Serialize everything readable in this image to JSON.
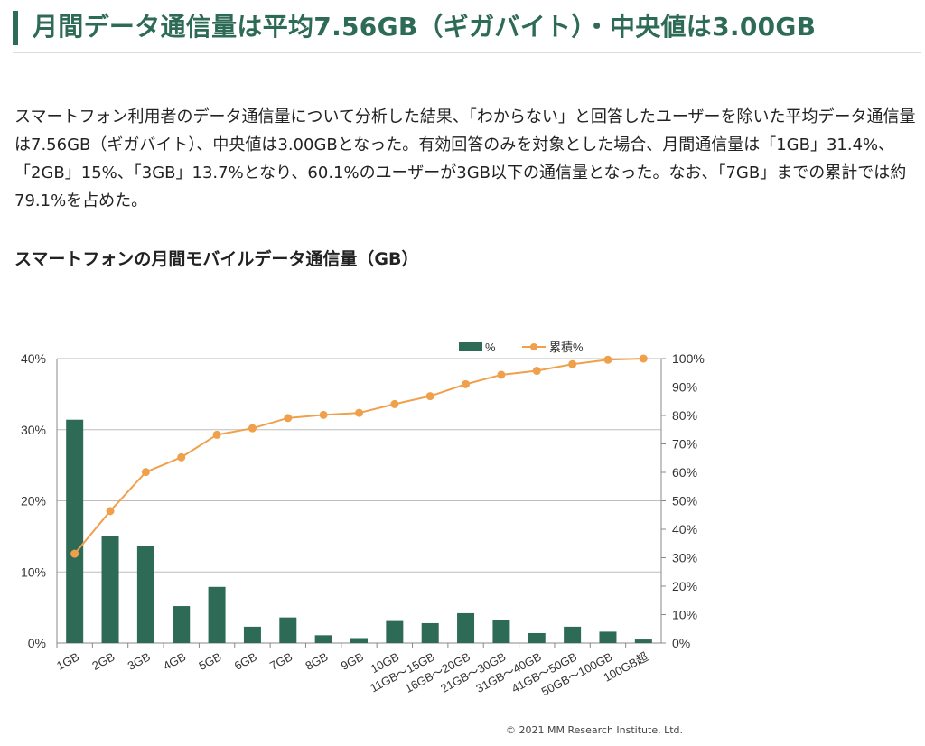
{
  "heading": {
    "title": "月間データ通信量は平均7.56GB（ギガバイト）・中央値は3.00GB"
  },
  "paragraph": "スマートフォン利用者のデータ通信量について分析した結果、「わからない」と回答したユーザーを除いた平均データ通信量は7.56GB（ギガバイト）、中央値は3.00GBとなった。有効回答のみを対象とした場合、月間通信量は「1GB」31.4%、「2GB」15%、「3GB」13.7%となり、60.1%のユーザーが3GB以下の通信量となった。なお、「7GB」までの累計では約79.1%を占めた。",
  "chart_heading": "スマートフォンの月間モバイルデータ通信量（GB）",
  "copyright": "© 2021 MM Research Institute, Ltd.",
  "colors": {
    "bar": "#2e6b57",
    "line": "#f0a04b",
    "heading": "#2e6b57"
  },
  "chart_data": {
    "type": "bar",
    "categories": [
      "1GB",
      "2GB",
      "3GB",
      "4GB",
      "5GB",
      "6GB",
      "7GB",
      "8GB",
      "9GB",
      "10GB",
      "11GB〜15GB",
      "16GB〜20GB",
      "21GB〜30GB",
      "31GB〜40GB",
      "41GB〜50GB",
      "50GB〜100GB",
      "100GB超"
    ],
    "series": [
      {
        "name": "%",
        "type": "bar",
        "axis": "left",
        "values": [
          31.4,
          15.0,
          13.7,
          5.2,
          7.9,
          2.3,
          3.6,
          1.1,
          0.7,
          3.1,
          2.8,
          4.2,
          3.3,
          1.4,
          2.3,
          1.6,
          0.5
        ]
      },
      {
        "name": "累積%",
        "type": "line",
        "axis": "right",
        "values": [
          31.4,
          46.4,
          60.1,
          65.3,
          73.2,
          75.5,
          79.1,
          80.2,
          80.9,
          84.0,
          86.8,
          91.0,
          94.3,
          95.7,
          98.0,
          99.6,
          100.0
        ]
      }
    ],
    "y_left": {
      "ylim": [
        0,
        40
      ],
      "ticks": [
        "0%",
        "10%",
        "20%",
        "30%",
        "40%"
      ]
    },
    "y_right": {
      "ylim": [
        0,
        100
      ],
      "ticks": [
        "0%",
        "10%",
        "20%",
        "30%",
        "40%",
        "50%",
        "60%",
        "70%",
        "80%",
        "90%",
        "100%"
      ]
    },
    "legend": "top-right",
    "grid": true
  }
}
